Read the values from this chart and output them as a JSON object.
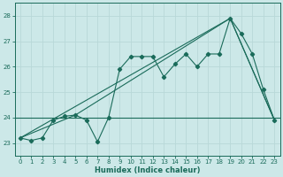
{
  "xlabel": "Humidex (Indice chaleur)",
  "bg_color": "#cce8e8",
  "grid_color": "#b8d8d8",
  "line_color": "#1a6b5a",
  "spine_color": "#1a6b5a",
  "xlim": [
    -0.5,
    23.5
  ],
  "ylim": [
    22.5,
    28.5
  ],
  "yticks": [
    23,
    24,
    25,
    26,
    27,
    28
  ],
  "xticks": [
    0,
    1,
    2,
    3,
    4,
    5,
    6,
    7,
    8,
    9,
    10,
    11,
    12,
    13,
    14,
    15,
    16,
    17,
    18,
    19,
    20,
    21,
    22,
    23
  ],
  "series1_x": [
    0,
    1,
    2,
    3,
    4,
    5,
    6,
    7,
    8,
    9,
    10,
    11,
    12,
    13,
    14,
    15,
    16,
    17,
    18,
    19,
    20,
    21,
    22,
    23
  ],
  "series1_y": [
    23.2,
    23.1,
    23.2,
    23.9,
    24.05,
    24.1,
    23.9,
    23.05,
    24.0,
    25.9,
    26.4,
    26.4,
    26.4,
    25.6,
    26.1,
    26.5,
    26.0,
    26.5,
    26.5,
    27.9,
    27.3,
    26.5,
    25.1,
    23.9
  ],
  "line2_x": [
    0,
    19,
    23
  ],
  "line2_y": [
    23.2,
    27.9,
    23.9
  ],
  "line3_x": [
    0,
    5,
    19,
    23
  ],
  "line3_y": [
    23.2,
    24.1,
    27.9,
    23.9
  ],
  "hline_y": 24.0
}
